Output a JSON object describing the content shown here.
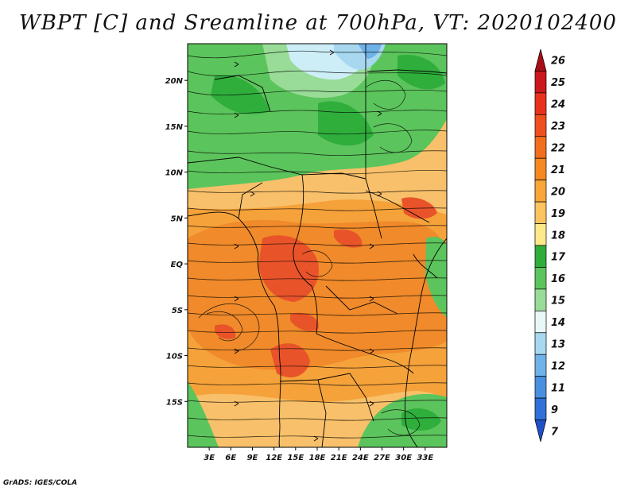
{
  "title": "WBPT [C] and Sreamline at 700hPa, VT: 2020102400",
  "footer": "GrADS: IGES/COLA",
  "map": {
    "lon_range": [
      0,
      36
    ],
    "lat_range": [
      -20,
      24
    ],
    "lat_ticks": [
      {
        "value": 20,
        "label": "20N"
      },
      {
        "value": 15,
        "label": "15N"
      },
      {
        "value": 10,
        "label": "10N"
      },
      {
        "value": 5,
        "label": "5N"
      },
      {
        "value": 0,
        "label": "EQ"
      },
      {
        "value": -5,
        "label": "5S"
      },
      {
        "value": -10,
        "label": "10S"
      },
      {
        "value": -15,
        "label": "15S"
      }
    ],
    "lon_ticks": [
      {
        "value": 3,
        "label": "3E"
      },
      {
        "value": 6,
        "label": "6E"
      },
      {
        "value": 9,
        "label": "9E"
      },
      {
        "value": 12,
        "label": "12E"
      },
      {
        "value": 15,
        "label": "15E"
      },
      {
        "value": 18,
        "label": "18E"
      },
      {
        "value": 21,
        "label": "21E"
      },
      {
        "value": 24,
        "label": "24E"
      },
      {
        "value": 27,
        "label": "27E"
      },
      {
        "value": 30,
        "label": "30E"
      },
      {
        "value": 33,
        "label": "33E"
      }
    ]
  },
  "colorbar": {
    "labels": [
      "26",
      "25",
      "24",
      "23",
      "22",
      "21",
      "20",
      "19",
      "18",
      "17",
      "16",
      "15",
      "14",
      "13",
      "12",
      "11",
      "9",
      "7"
    ],
    "colors": [
      "#a50f15",
      "#cb181d",
      "#e8321e",
      "#f0501e",
      "#f36d1f",
      "#f5891f",
      "#f8a637",
      "#fbc45e",
      "#fde98a",
      "#2fae3c",
      "#5cc45c",
      "#98dc98",
      "#e8f8f8",
      "#a8d8f0",
      "#6fb2e8",
      "#4a8fe0",
      "#3070d8",
      "#2050c8"
    ]
  }
}
